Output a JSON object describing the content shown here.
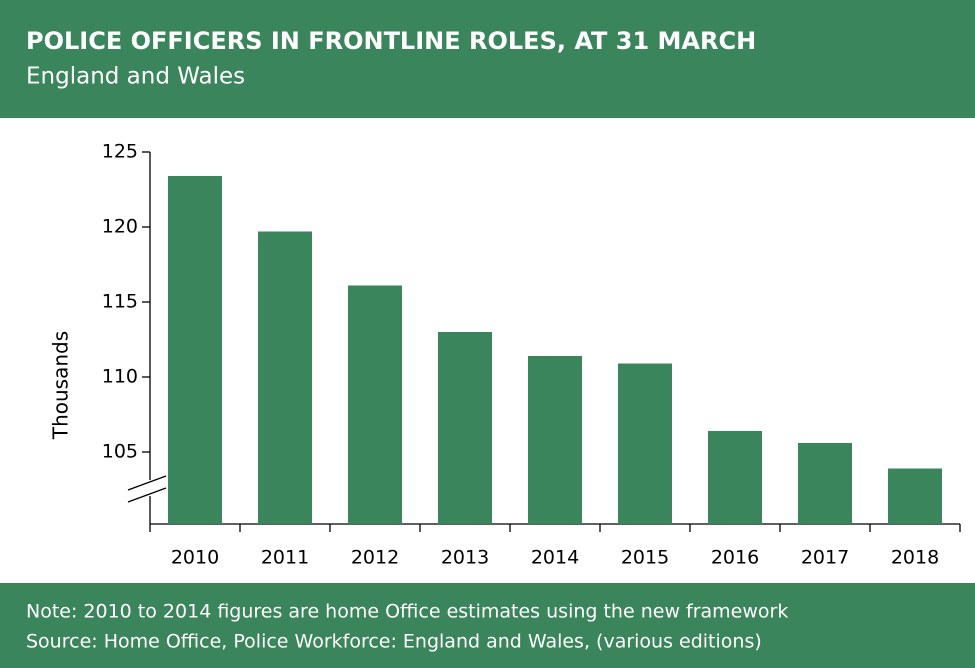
{
  "chart_data": {
    "type": "bar",
    "title": "POLICE OFFICERS IN FRONTLINE ROLES, AT 31 MARCH",
    "subtitle": "England and Wales",
    "y_label": "Thousands",
    "categories": [
      "2010",
      "2011",
      "2012",
      "2013",
      "2014",
      "2015",
      "2016",
      "2017",
      "2018"
    ],
    "values": [
      123.4,
      119.7,
      116.1,
      113.0,
      111.4,
      110.9,
      106.4,
      105.6,
      103.9
    ],
    "color": "#3a855b",
    "ylim": [
      100,
      125
    ],
    "yticks": [
      105,
      110,
      115,
      120,
      125
    ],
    "grid": false,
    "note": "Note: 2010 to 2014 figures are home Office estimates using the new framework",
    "source": "Source: Home Office, Police Workforce: England and Wales, (various editions)"
  }
}
